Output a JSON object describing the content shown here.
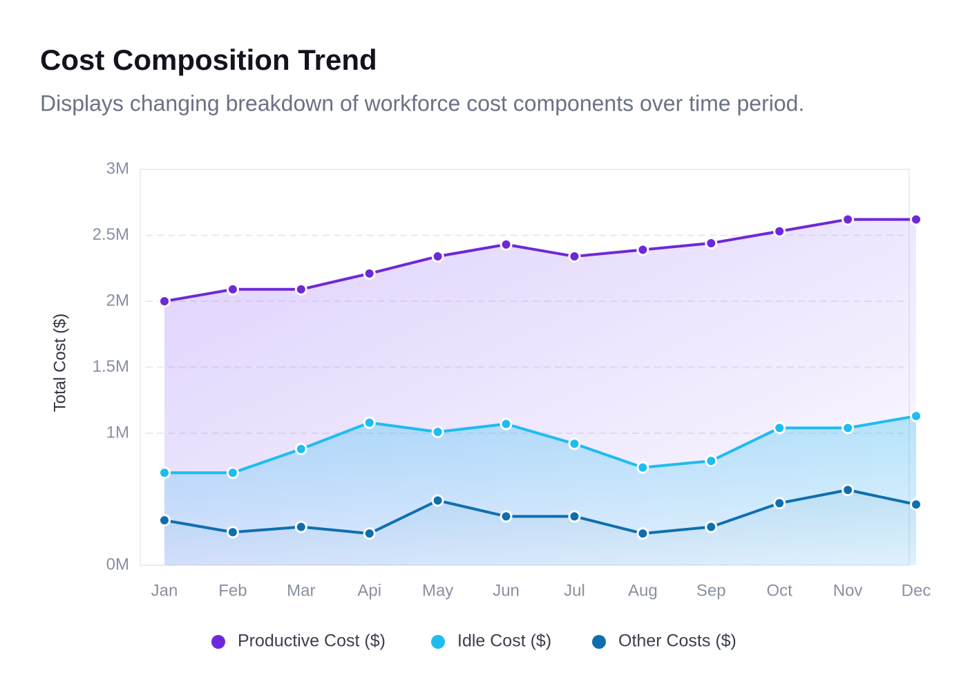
{
  "chart_data": {
    "type": "area",
    "title": "Cost Composition Trend",
    "subtitle": "Displays changing breakdown of workforce cost components over time period.",
    "y_label": "Total Cost  ($)",
    "categories": [
      "Jan",
      "Feb",
      "Mar",
      "Api",
      "May",
      "Jun",
      "Jul",
      "Aug",
      "Sep",
      "Oct",
      "Nov",
      "Dec"
    ],
    "series": [
      {
        "name": "Productive Cost ($)",
        "color": "#6d28d9",
        "values": [
          2000000,
          2090000,
          2090000,
          2210000,
          2340000,
          2430000,
          2340000,
          2390000,
          2440000,
          2530000,
          2620000,
          2620000
        ]
      },
      {
        "name": "Idle Cost ($)",
        "color": "#1ebcf0",
        "values": [
          700000,
          700000,
          880000,
          1080000,
          1010000,
          1070000,
          920000,
          740000,
          790000,
          1040000,
          1040000,
          1130000
        ]
      },
      {
        "name": "Other Costs ($)",
        "color": "#0e6fb0",
        "values": [
          340000,
          250000,
          290000,
          240000,
          490000,
          370000,
          370000,
          240000,
          290000,
          470000,
          570000,
          460000
        ]
      }
    ],
    "ylim": [
      0,
      3000000
    ],
    "yticks": [
      {
        "value": 0,
        "label": "0M"
      },
      {
        "value": 1000000,
        "label": "1M"
      },
      {
        "value": 1500000,
        "label": "1.5M"
      },
      {
        "value": 2000000,
        "label": "2M"
      },
      {
        "value": 2500000,
        "label": "2.5M"
      },
      {
        "value": 3000000,
        "label": "3M"
      }
    ],
    "grid": true
  }
}
